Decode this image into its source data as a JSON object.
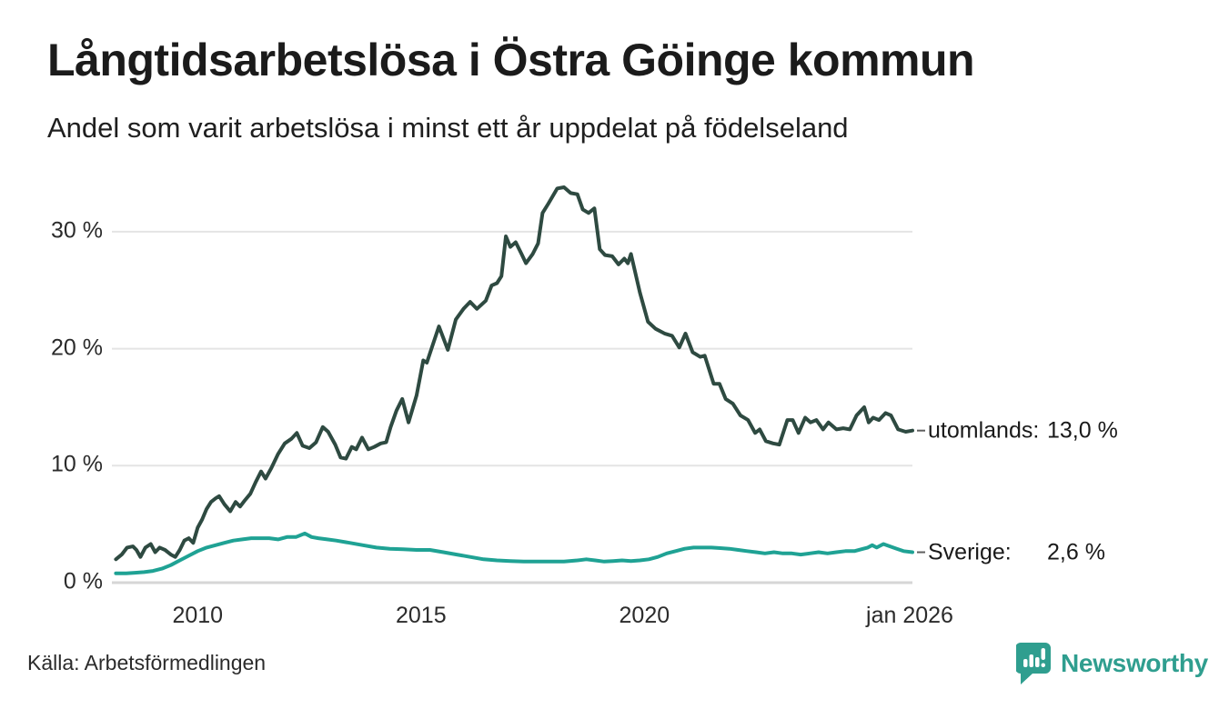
{
  "title": "Långtidsarbetslösa i Östra Göinge kommun",
  "subtitle": "Andel som varit arbetslösa i minst ett år uppdelat på födelseland",
  "source": "Källa: Arbetsförmedlingen",
  "branding": {
    "name": "Newsworthy",
    "icon": "speech-bubble-bar-chart",
    "color": "#2f9e8f"
  },
  "chart_data": {
    "type": "line",
    "title": "Långtidsarbetslösa i Östra Göinge kommun",
    "subtitle": "Andel som varit arbetslösa i minst ett år uppdelat på födelseland",
    "grid": true,
    "x_range": [
      2008.08,
      2026.0
    ],
    "ylim": [
      0,
      35
    ],
    "x_axis": {
      "ticks": [
        {
          "label": "2010",
          "year": 2010
        },
        {
          "label": "2015",
          "year": 2015
        },
        {
          "label": "2020",
          "year": 2020
        },
        {
          "label": "jan 2026",
          "year": 2026
        }
      ]
    },
    "y_axis": {
      "ticks": [
        {
          "label": "0 %",
          "value": 0
        },
        {
          "label": "10 %",
          "value": 10
        },
        {
          "label": "20 %",
          "value": 20
        },
        {
          "label": "30 %",
          "value": 30
        }
      ]
    },
    "series": [
      {
        "name": "utomlands",
        "end_label": "utomlands:",
        "end_value": "13,0 %",
        "color": "#2e4a41",
        "points": [
          [
            2008.17,
            2.0
          ],
          [
            2008.3,
            2.4
          ],
          [
            2008.42,
            3.0
          ],
          [
            2008.55,
            3.1
          ],
          [
            2008.63,
            2.8
          ],
          [
            2008.72,
            2.2
          ],
          [
            2008.83,
            3.0
          ],
          [
            2008.95,
            3.3
          ],
          [
            2009.05,
            2.6
          ],
          [
            2009.15,
            3.0
          ],
          [
            2009.27,
            2.8
          ],
          [
            2009.4,
            2.4
          ],
          [
            2009.5,
            2.2
          ],
          [
            2009.6,
            2.8
          ],
          [
            2009.7,
            3.6
          ],
          [
            2009.8,
            3.8
          ],
          [
            2009.9,
            3.4
          ],
          [
            2010.0,
            4.7
          ],
          [
            2010.1,
            5.4
          ],
          [
            2010.2,
            6.3
          ],
          [
            2010.3,
            6.9
          ],
          [
            2010.4,
            7.2
          ],
          [
            2010.48,
            7.4
          ],
          [
            2010.6,
            6.7
          ],
          [
            2010.73,
            6.1
          ],
          [
            2010.85,
            6.9
          ],
          [
            2010.95,
            6.5
          ],
          [
            2011.05,
            7.0
          ],
          [
            2011.18,
            7.6
          ],
          [
            2011.3,
            8.6
          ],
          [
            2011.42,
            9.5
          ],
          [
            2011.52,
            8.9
          ],
          [
            2011.65,
            9.8
          ],
          [
            2011.8,
            11.0
          ],
          [
            2011.95,
            11.9
          ],
          [
            2012.1,
            12.3
          ],
          [
            2012.22,
            12.8
          ],
          [
            2012.35,
            11.7
          ],
          [
            2012.5,
            11.5
          ],
          [
            2012.65,
            12.0
          ],
          [
            2012.8,
            13.3
          ],
          [
            2012.92,
            12.9
          ],
          [
            2013.08,
            11.8
          ],
          [
            2013.2,
            10.7
          ],
          [
            2013.32,
            10.6
          ],
          [
            2013.45,
            11.6
          ],
          [
            2013.55,
            11.4
          ],
          [
            2013.68,
            12.4
          ],
          [
            2013.82,
            11.4
          ],
          [
            2013.95,
            11.6
          ],
          [
            2014.1,
            11.9
          ],
          [
            2014.22,
            12.0
          ],
          [
            2014.32,
            13.3
          ],
          [
            2014.45,
            14.7
          ],
          [
            2014.58,
            15.7
          ],
          [
            2014.72,
            13.7
          ],
          [
            2014.9,
            16.0
          ],
          [
            2015.05,
            19.0
          ],
          [
            2015.13,
            18.8
          ],
          [
            2015.2,
            19.6
          ],
          [
            2015.4,
            21.9
          ],
          [
            2015.6,
            19.9
          ],
          [
            2015.78,
            22.5
          ],
          [
            2015.95,
            23.4
          ],
          [
            2016.1,
            24.0
          ],
          [
            2016.25,
            23.4
          ],
          [
            2016.45,
            24.1
          ],
          [
            2016.58,
            25.4
          ],
          [
            2016.7,
            25.6
          ],
          [
            2016.8,
            26.2
          ],
          [
            2016.9,
            29.6
          ],
          [
            2017.0,
            28.7
          ],
          [
            2017.12,
            29.1
          ],
          [
            2017.25,
            28.1
          ],
          [
            2017.35,
            27.3
          ],
          [
            2017.5,
            28.1
          ],
          [
            2017.62,
            29.0
          ],
          [
            2017.72,
            31.6
          ],
          [
            2017.85,
            32.4
          ],
          [
            2018.05,
            33.7
          ],
          [
            2018.2,
            33.8
          ],
          [
            2018.35,
            33.3
          ],
          [
            2018.5,
            33.2
          ],
          [
            2018.62,
            31.9
          ],
          [
            2018.75,
            31.6
          ],
          [
            2018.88,
            32.0
          ],
          [
            2019.0,
            28.5
          ],
          [
            2019.12,
            28.0
          ],
          [
            2019.28,
            27.9
          ],
          [
            2019.42,
            27.2
          ],
          [
            2019.55,
            27.7
          ],
          [
            2019.63,
            27.3
          ],
          [
            2019.7,
            28.1
          ],
          [
            2019.9,
            24.8
          ],
          [
            2020.08,
            22.3
          ],
          [
            2020.25,
            21.7
          ],
          [
            2020.45,
            21.3
          ],
          [
            2020.62,
            21.1
          ],
          [
            2020.78,
            20.1
          ],
          [
            2020.92,
            21.3
          ],
          [
            2021.08,
            19.7
          ],
          [
            2021.25,
            19.3
          ],
          [
            2021.35,
            19.4
          ],
          [
            2021.55,
            17.0
          ],
          [
            2021.68,
            17.0
          ],
          [
            2021.82,
            15.7
          ],
          [
            2021.98,
            15.3
          ],
          [
            2022.15,
            14.3
          ],
          [
            2022.32,
            13.9
          ],
          [
            2022.48,
            12.8
          ],
          [
            2022.58,
            13.1
          ],
          [
            2022.72,
            12.1
          ],
          [
            2022.88,
            11.9
          ],
          [
            2023.02,
            11.8
          ],
          [
            2023.2,
            13.9
          ],
          [
            2023.32,
            13.9
          ],
          [
            2023.45,
            12.8
          ],
          [
            2023.6,
            14.1
          ],
          [
            2023.72,
            13.7
          ],
          [
            2023.85,
            13.9
          ],
          [
            2024.0,
            13.1
          ],
          [
            2024.12,
            13.7
          ],
          [
            2024.3,
            13.1
          ],
          [
            2024.45,
            13.2
          ],
          [
            2024.6,
            13.1
          ],
          [
            2024.75,
            14.3
          ],
          [
            2024.92,
            15.0
          ],
          [
            2025.02,
            13.7
          ],
          [
            2025.12,
            14.1
          ],
          [
            2025.25,
            13.9
          ],
          [
            2025.4,
            14.5
          ],
          [
            2025.52,
            14.3
          ],
          [
            2025.68,
            13.1
          ],
          [
            2025.85,
            12.9
          ],
          [
            2026.0,
            13.0
          ]
        ]
      },
      {
        "name": "Sverige",
        "end_label": "Sverige:",
        "end_value": "2,6 %",
        "color": "#1fa294",
        "points": [
          [
            2008.17,
            0.8
          ],
          [
            2008.4,
            0.8
          ],
          [
            2008.6,
            0.85
          ],
          [
            2008.8,
            0.9
          ],
          [
            2009.0,
            1.0
          ],
          [
            2009.2,
            1.2
          ],
          [
            2009.4,
            1.5
          ],
          [
            2009.6,
            1.9
          ],
          [
            2009.8,
            2.3
          ],
          [
            2010.0,
            2.7
          ],
          [
            2010.2,
            3.0
          ],
          [
            2010.4,
            3.2
          ],
          [
            2010.6,
            3.4
          ],
          [
            2010.8,
            3.6
          ],
          [
            2011.0,
            3.7
          ],
          [
            2011.2,
            3.8
          ],
          [
            2011.4,
            3.8
          ],
          [
            2011.6,
            3.8
          ],
          [
            2011.8,
            3.7
          ],
          [
            2012.0,
            3.9
          ],
          [
            2012.2,
            3.9
          ],
          [
            2012.4,
            4.2
          ],
          [
            2012.55,
            3.9
          ],
          [
            2012.7,
            3.8
          ],
          [
            2012.9,
            3.7
          ],
          [
            2013.1,
            3.6
          ],
          [
            2013.4,
            3.4
          ],
          [
            2013.7,
            3.2
          ],
          [
            2014.0,
            3.0
          ],
          [
            2014.3,
            2.9
          ],
          [
            2014.6,
            2.85
          ],
          [
            2014.9,
            2.8
          ],
          [
            2015.2,
            2.8
          ],
          [
            2015.5,
            2.6
          ],
          [
            2015.8,
            2.4
          ],
          [
            2016.1,
            2.2
          ],
          [
            2016.4,
            2.0
          ],
          [
            2016.7,
            1.9
          ],
          [
            2017.0,
            1.85
          ],
          [
            2017.3,
            1.8
          ],
          [
            2017.6,
            1.8
          ],
          [
            2017.9,
            1.8
          ],
          [
            2018.2,
            1.8
          ],
          [
            2018.5,
            1.9
          ],
          [
            2018.7,
            2.0
          ],
          [
            2018.9,
            1.9
          ],
          [
            2019.1,
            1.8
          ],
          [
            2019.3,
            1.85
          ],
          [
            2019.5,
            1.9
          ],
          [
            2019.7,
            1.85
          ],
          [
            2019.9,
            1.9
          ],
          [
            2020.1,
            2.0
          ],
          [
            2020.3,
            2.2
          ],
          [
            2020.5,
            2.5
          ],
          [
            2020.7,
            2.7
          ],
          [
            2020.9,
            2.9
          ],
          [
            2021.1,
            3.0
          ],
          [
            2021.3,
            3.0
          ],
          [
            2021.5,
            3.0
          ],
          [
            2021.7,
            2.95
          ],
          [
            2021.9,
            2.9
          ],
          [
            2022.1,
            2.8
          ],
          [
            2022.3,
            2.7
          ],
          [
            2022.5,
            2.6
          ],
          [
            2022.7,
            2.5
          ],
          [
            2022.9,
            2.6
          ],
          [
            2023.1,
            2.5
          ],
          [
            2023.3,
            2.5
          ],
          [
            2023.5,
            2.4
          ],
          [
            2023.7,
            2.5
          ],
          [
            2023.9,
            2.6
          ],
          [
            2024.1,
            2.5
          ],
          [
            2024.3,
            2.6
          ],
          [
            2024.5,
            2.7
          ],
          [
            2024.7,
            2.7
          ],
          [
            2024.9,
            2.9
          ],
          [
            2025.0,
            3.0
          ],
          [
            2025.1,
            3.2
          ],
          [
            2025.2,
            3.0
          ],
          [
            2025.35,
            3.3
          ],
          [
            2025.5,
            3.1
          ],
          [
            2025.65,
            2.9
          ],
          [
            2025.8,
            2.7
          ],
          [
            2026.0,
            2.6
          ]
        ]
      }
    ]
  }
}
